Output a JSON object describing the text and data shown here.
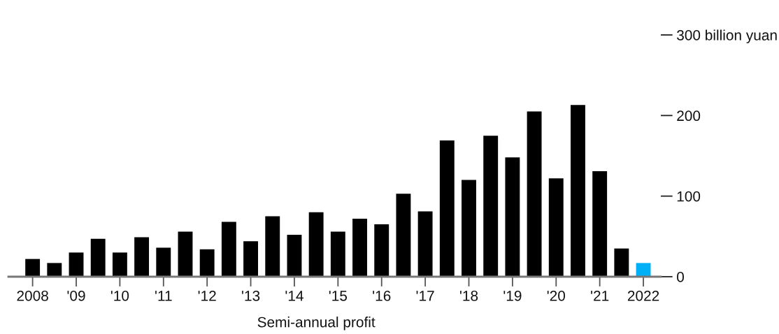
{
  "chart_data": {
    "type": "bar",
    "xlabel": "Semi-annual profit",
    "categories": [
      "2008",
      null,
      "'09",
      null,
      "'10",
      null,
      "'11",
      null,
      "'12",
      null,
      "'13",
      null,
      "'14",
      null,
      "'15",
      null,
      "'16",
      null,
      "'17",
      null,
      "'18",
      null,
      "'19",
      null,
      "'20",
      null,
      "'21",
      null,
      "2022"
    ],
    "values": [
      22,
      17,
      30,
      47,
      30,
      49,
      36,
      56,
      34,
      68,
      44,
      75,
      52,
      80,
      56,
      72,
      65,
      103,
      81,
      169,
      120,
      175,
      148,
      205,
      122,
      213,
      131,
      35,
      17
    ],
    "colors": [
      "#000000",
      "#000000",
      "#000000",
      "#000000",
      "#000000",
      "#000000",
      "#000000",
      "#000000",
      "#000000",
      "#000000",
      "#000000",
      "#000000",
      "#000000",
      "#000000",
      "#000000",
      "#000000",
      "#000000",
      "#000000",
      "#000000",
      "#000000",
      "#000000",
      "#000000",
      "#000000",
      "#000000",
      "#000000",
      "#000000",
      "#000000",
      "#000000",
      "#00b0f6"
    ],
    "ylim": [
      0,
      300
    ],
    "yticks": [
      0,
      100,
      200,
      {
        "value": 300,
        "label": "300 billion yuan"
      }
    ]
  }
}
